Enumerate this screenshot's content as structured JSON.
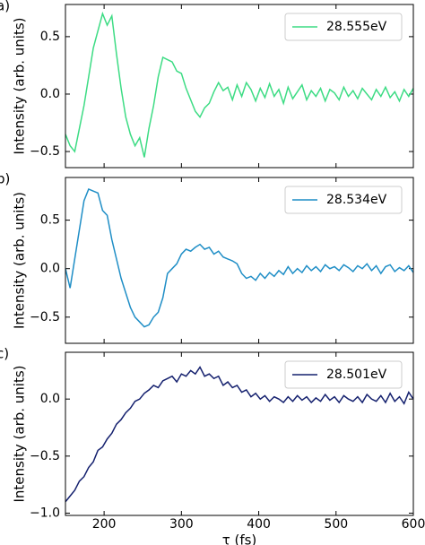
{
  "chart_data": [
    {
      "type": "line",
      "panel_label": "a)",
      "ylabel": "Intensity (arb. units)",
      "x": [
        150,
        156,
        162,
        168,
        174,
        180,
        186,
        192,
        198,
        204,
        210,
        216,
        222,
        228,
        234,
        240,
        246,
        252,
        258,
        264,
        270,
        276,
        282,
        288,
        294,
        300,
        306,
        312,
        318,
        324,
        330,
        336,
        342,
        348,
        354,
        360,
        366,
        372,
        378,
        384,
        390,
        396,
        402,
        408,
        414,
        420,
        426,
        432,
        438,
        444,
        450,
        456,
        462,
        468,
        474,
        480,
        486,
        492,
        498,
        504,
        510,
        516,
        522,
        528,
        534,
        540,
        546,
        552,
        558,
        564,
        570,
        576,
        582,
        588,
        594,
        600
      ],
      "xlim": [
        150,
        600
      ],
      "xticks": [
        200,
        300,
        400,
        500,
        600
      ],
      "show_xticklabels": false,
      "ylim": [
        -0.64,
        0.78
      ],
      "yticks": [
        {
          "value": -0.5,
          "label": "−0.5"
        },
        {
          "value": 0,
          "label": "0.0"
        },
        0.5
      ],
      "legend": "upper right",
      "series": [
        {
          "name": "28.555eV",
          "color": "#3ddc84",
          "values": [
            -0.35,
            -0.45,
            -0.5,
            -0.3,
            -0.1,
            0.15,
            0.4,
            0.55,
            0.7,
            0.6,
            0.68,
            0.35,
            0.05,
            -0.2,
            -0.35,
            -0.45,
            -0.38,
            -0.55,
            -0.3,
            -0.1,
            0.15,
            0.32,
            0.3,
            0.28,
            0.2,
            0.18,
            0.05,
            -0.05,
            -0.15,
            -0.2,
            -0.12,
            -0.08,
            0.02,
            0.1,
            0.03,
            0.06,
            -0.05,
            0.08,
            -0.02,
            0.1,
            0.04,
            -0.06,
            0.05,
            -0.03,
            0.09,
            -0.02,
            0.04,
            -0.08,
            0.06,
            -0.04,
            0.02,
            0.08,
            -0.05,
            0.03,
            -0.02,
            0.05,
            -0.06,
            0.04,
            0.01,
            -0.05,
            0.06,
            -0.02,
            0.03,
            -0.04,
            0.05,
            0.0,
            -0.05,
            0.04,
            -0.02,
            0.06,
            -0.03,
            0.02,
            -0.06,
            0.04,
            -0.02,
            0.05
          ]
        }
      ]
    },
    {
      "type": "line",
      "panel_label": "b)",
      "ylabel": "Intensity (arb. units)",
      "x": [
        150,
        156,
        162,
        168,
        174,
        180,
        186,
        192,
        198,
        204,
        210,
        216,
        222,
        228,
        234,
        240,
        246,
        252,
        258,
        264,
        270,
        276,
        282,
        288,
        294,
        300,
        306,
        312,
        318,
        324,
        330,
        336,
        342,
        348,
        354,
        360,
        366,
        372,
        378,
        384,
        390,
        396,
        402,
        408,
        414,
        420,
        426,
        432,
        438,
        444,
        450,
        456,
        462,
        468,
        474,
        480,
        486,
        492,
        498,
        504,
        510,
        516,
        522,
        528,
        534,
        540,
        546,
        552,
        558,
        564,
        570,
        576,
        582,
        588,
        594,
        600
      ],
      "xlim": [
        150,
        600
      ],
      "xticks": [
        200,
        300,
        400,
        500,
        600
      ],
      "show_xticklabels": false,
      "ylim": [
        -0.77,
        0.94
      ],
      "yticks": [
        {
          "value": -0.5,
          "label": "−0.5"
        },
        {
          "value": 0,
          "label": "0.0"
        },
        0.5
      ],
      "legend": "upper right",
      "series": [
        {
          "name": "28.534eV",
          "color": "#1f8ec6",
          "values": [
            0.0,
            -0.2,
            0.1,
            0.4,
            0.7,
            0.82,
            0.8,
            0.78,
            0.6,
            0.55,
            0.3,
            0.1,
            -0.1,
            -0.25,
            -0.4,
            -0.5,
            -0.55,
            -0.6,
            -0.58,
            -0.5,
            -0.45,
            -0.3,
            -0.05,
            0.0,
            0.05,
            0.15,
            0.2,
            0.18,
            0.22,
            0.25,
            0.2,
            0.22,
            0.15,
            0.18,
            0.12,
            0.1,
            0.08,
            0.05,
            -0.05,
            -0.1,
            -0.08,
            -0.12,
            -0.05,
            -0.1,
            -0.04,
            -0.08,
            -0.02,
            -0.06,
            0.02,
            -0.05,
            0.0,
            -0.04,
            0.03,
            -0.02,
            0.02,
            -0.03,
            0.04,
            0.0,
            0.02,
            -0.02,
            0.04,
            0.01,
            -0.03,
            0.03,
            0.0,
            0.05,
            -0.02,
            0.03,
            -0.05,
            0.02,
            0.04,
            -0.03,
            0.01,
            -0.02,
            0.03,
            -0.04
          ]
        }
      ]
    },
    {
      "type": "line",
      "panel_label": "c)",
      "ylabel": "Intensity (arb. units)",
      "xlabel": "τ (fs)",
      "x": [
        150,
        156,
        162,
        168,
        174,
        180,
        186,
        192,
        198,
        204,
        210,
        216,
        222,
        228,
        234,
        240,
        246,
        252,
        258,
        264,
        270,
        276,
        282,
        288,
        294,
        300,
        306,
        312,
        318,
        324,
        330,
        336,
        342,
        348,
        354,
        360,
        366,
        372,
        378,
        384,
        390,
        396,
        402,
        408,
        414,
        420,
        426,
        432,
        438,
        444,
        450,
        456,
        462,
        468,
        474,
        480,
        486,
        492,
        498,
        504,
        510,
        516,
        522,
        528,
        534,
        540,
        546,
        552,
        558,
        564,
        570,
        576,
        582,
        588,
        594,
        600
      ],
      "xlim": [
        150,
        600
      ],
      "xticks": [
        200,
        300,
        400,
        500,
        600
      ],
      "show_xticklabels": true,
      "ylim": [
        -1.02,
        0.41
      ],
      "yticks": [
        {
          "value": -1.0,
          "label": "−1.0"
        },
        {
          "value": -0.5,
          "label": "−0.5"
        },
        {
          "value": 0,
          "label": "0.0"
        }
      ],
      "legend": "upper right",
      "series": [
        {
          "name": "28.501eV",
          "color": "#14206e",
          "values": [
            -0.9,
            -0.85,
            -0.8,
            -0.72,
            -0.68,
            -0.6,
            -0.55,
            -0.45,
            -0.42,
            -0.35,
            -0.3,
            -0.22,
            -0.18,
            -0.12,
            -0.08,
            -0.02,
            0.0,
            0.05,
            0.08,
            0.12,
            0.1,
            0.16,
            0.18,
            0.2,
            0.15,
            0.22,
            0.2,
            0.25,
            0.22,
            0.28,
            0.2,
            0.22,
            0.18,
            0.2,
            0.12,
            0.15,
            0.1,
            0.12,
            0.06,
            0.08,
            0.02,
            0.05,
            0.0,
            0.03,
            -0.02,
            0.02,
            0.0,
            -0.03,
            0.02,
            -0.02,
            0.03,
            -0.01,
            0.02,
            -0.03,
            0.01,
            -0.02,
            0.04,
            -0.01,
            0.02,
            -0.03,
            0.03,
            0.0,
            -0.02,
            0.02,
            -0.03,
            0.04,
            0.0,
            -0.02,
            0.03,
            -0.03,
            0.05,
            -0.02,
            0.02,
            -0.04,
            0.06,
            0.0
          ]
        }
      ]
    }
  ]
}
